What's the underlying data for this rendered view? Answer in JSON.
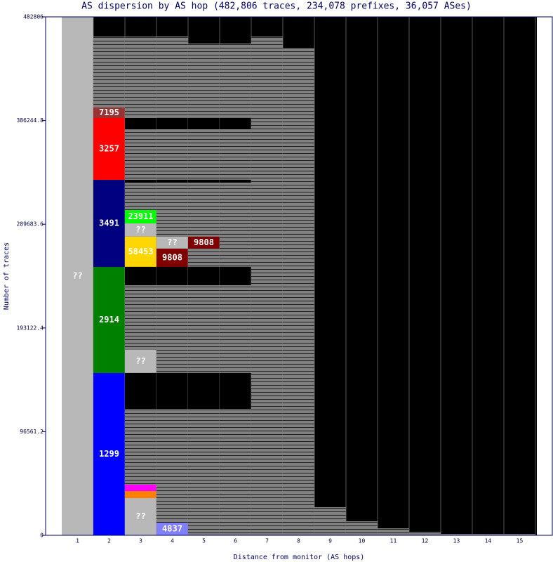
{
  "chart_data": {
    "type": "stacked-columns",
    "title": "AS dispersion by AS hop (482,806 traces, 234,078 prefixes, 36,057 ASes)",
    "x_label": "Distance from monitor (AS hops)",
    "y_label": "Number of traces",
    "ylim": [
      0,
      482806
    ],
    "yticks": [
      0,
      96561.2,
      193122.4,
      289683.6,
      386244.8,
      482806
    ],
    "categories": [
      "1",
      "2",
      "3",
      "4",
      "5",
      "6",
      "7",
      "8",
      "9",
      "10",
      "11",
      "12",
      "13",
      "14",
      "15"
    ],
    "columns": [
      [
        {
          "label": "??",
          "value": 482806,
          "color": "#b8b8b8"
        }
      ],
      [
        {
          "label": "1299",
          "value": 151100,
          "color": "#0000ff"
        },
        {
          "label": "2914",
          "value": 98800,
          "color": "#008000"
        },
        {
          "label": "3491",
          "value": 81100,
          "color": "#000080"
        },
        {
          "label": "3257",
          "value": 57600,
          "color": "#ff0000"
        },
        {
          "label": "7195",
          "value": 9800,
          "color": "#993333"
        },
        {
          "value": 66100,
          "color": "#808080"
        }
      ],
      [
        {
          "label": "??",
          "value": 34700,
          "color": "#b8b8b8"
        },
        {
          "value": 6500,
          "color": "#ff8000"
        },
        {
          "value": 5900,
          "color": "#ff00ff"
        },
        {
          "value": 70700,
          "color": "#808080"
        },
        {
          "value": 33400,
          "color": "#000000"
        },
        {
          "label": "??",
          "value": 21600,
          "color": "#b8b8b8"
        },
        {
          "value": 60200,
          "color": "#808080"
        },
        {
          "value": 17000,
          "color": "#000000"
        },
        {
          "label": "58453",
          "value": 28100,
          "color": "#ffd700"
        },
        {
          "label": "??",
          "value": 12400,
          "color": "#b8b8b8"
        },
        {
          "label": "23911",
          "value": 12400,
          "color": "#00ff00"
        },
        {
          "value": 25500,
          "color": "#808080"
        },
        {
          "value": 2600,
          "color": "#000000"
        },
        {
          "value": 47100,
          "color": "#808080"
        },
        {
          "value": 10500,
          "color": "#000000"
        },
        {
          "value": 75900,
          "color": "#808080"
        }
      ],
      [
        {
          "label": "4837",
          "value": 11800,
          "color": "#8080ff"
        },
        {
          "value": 106000,
          "color": "#808080"
        },
        {
          "value": 33400,
          "color": "#000000"
        },
        {
          "value": 81800,
          "color": "#808080"
        },
        {
          "value": 17000,
          "color": "#000000"
        },
        {
          "label": "9808",
          "value": 17000,
          "color": "#800000"
        },
        {
          "label": "??",
          "value": 11100,
          "color": "#b8b8b8"
        },
        {
          "value": 50400,
          "color": "#808080"
        },
        {
          "value": 2600,
          "color": "#000000"
        },
        {
          "value": 47100,
          "color": "#808080"
        },
        {
          "value": 10500,
          "color": "#000000"
        },
        {
          "value": 75900,
          "color": "#808080"
        }
      ],
      [
        {
          "value": 117800,
          "color": "#808080"
        },
        {
          "value": 33400,
          "color": "#000000"
        },
        {
          "value": 81800,
          "color": "#808080"
        },
        {
          "value": 17000,
          "color": "#000000"
        },
        {
          "value": 17000,
          "color": "#808080"
        },
        {
          "label": "9808",
          "value": 11100,
          "color": "#800000"
        },
        {
          "value": 50400,
          "color": "#808080"
        },
        {
          "value": 2600,
          "color": "#000000"
        },
        {
          "value": 47100,
          "color": "#808080"
        },
        {
          "value": 10500,
          "color": "#000000"
        },
        {
          "value": 69300,
          "color": "#808080"
        }
      ],
      [
        {
          "value": 117800,
          "color": "#808080"
        },
        {
          "value": 33400,
          "color": "#000000"
        },
        {
          "value": 81800,
          "color": "#808080"
        },
        {
          "value": 17000,
          "color": "#000000"
        },
        {
          "value": 78500,
          "color": "#808080"
        },
        {
          "value": 2600,
          "color": "#000000"
        },
        {
          "value": 47100,
          "color": "#808080"
        },
        {
          "value": 10500,
          "color": "#000000"
        },
        {
          "value": 69300,
          "color": "#808080"
        }
      ],
      [
        {
          "value": 464500,
          "color": "#808080"
        }
      ],
      [
        {
          "value": 454000,
          "color": "#808080"
        }
      ],
      [
        {
          "value": 26200,
          "color": "#808080"
        }
      ],
      [
        {
          "value": 13100,
          "color": "#808080"
        }
      ],
      [
        {
          "value": 6500,
          "color": "#808080"
        }
      ],
      [
        {
          "value": 3300,
          "color": "#808080"
        }
      ],
      [
        {
          "value": 1300,
          "color": "#808080"
        }
      ],
      [
        {
          "value": 1300,
          "color": "#808080"
        }
      ],
      [
        {
          "value": 1300,
          "color": "#808080"
        }
      ]
    ]
  }
}
